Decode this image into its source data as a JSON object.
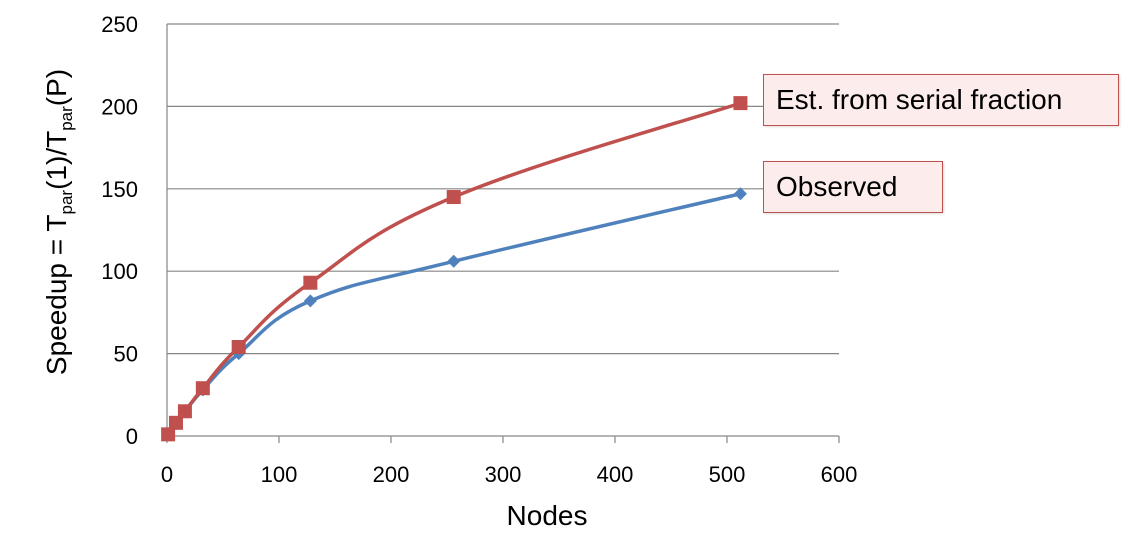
{
  "chart_data": {
    "type": "line",
    "xlabel": "Nodes",
    "ylabel": {
      "prefix": "Speedup = T",
      "sub1": "par",
      "middle": "(1)/T",
      "sub2": "par",
      "suffix": "(P)"
    },
    "xlim": [
      0,
      600
    ],
    "ylim": [
      0,
      250
    ],
    "xticks": [
      0,
      100,
      200,
      300,
      400,
      500,
      600
    ],
    "yticks": [
      0,
      50,
      100,
      150,
      200,
      250
    ],
    "grid": "horizontal",
    "series": [
      {
        "name": "Observed",
        "color": "#4f81bd",
        "marker": "diamond",
        "x": [
          1,
          8,
          16,
          32,
          64,
          128,
          256,
          512
        ],
        "y": [
          1,
          8,
          15,
          28,
          50,
          82,
          106,
          147
        ]
      },
      {
        "name": "Est. from serial fraction",
        "color": "#c0504d",
        "marker": "square",
        "x": [
          1,
          8,
          16,
          32,
          64,
          128,
          256,
          512
        ],
        "y": [
          1,
          8,
          15,
          29,
          54,
          93,
          145,
          202
        ]
      }
    ]
  }
}
